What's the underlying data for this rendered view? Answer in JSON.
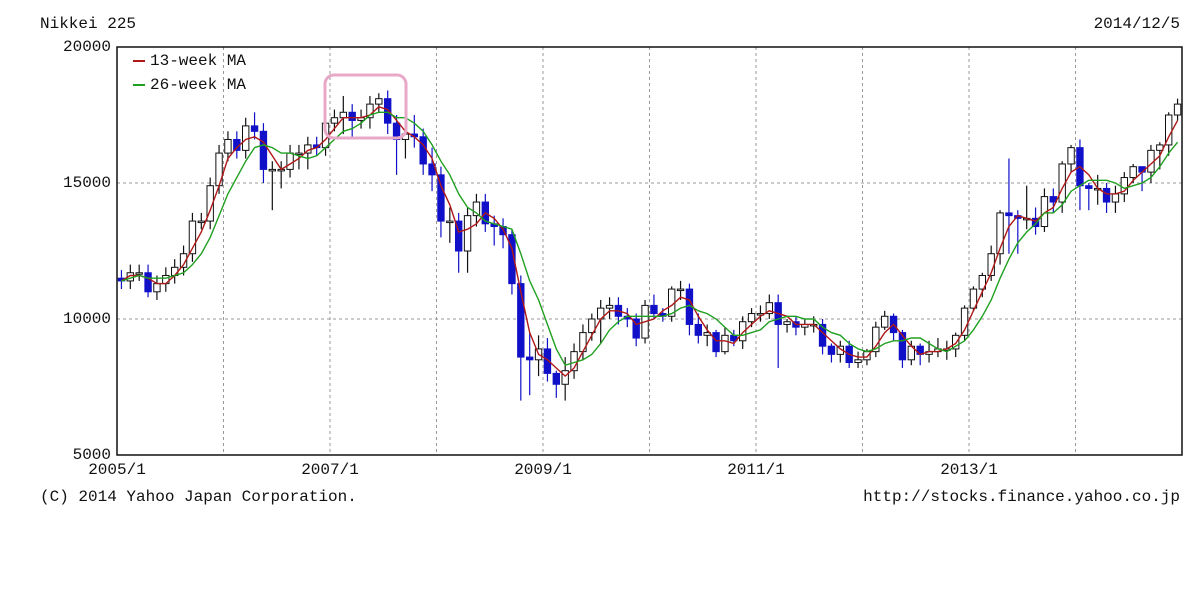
{
  "chart_data": {
    "type": "candlestick",
    "title": "Nikkei 225",
    "date": "2014/12/5",
    "categories": [
      "2005/1",
      null,
      null,
      null,
      null,
      null,
      null,
      null,
      null,
      null,
      null,
      null,
      null,
      null,
      null,
      null,
      null,
      null,
      null,
      null,
      null,
      null,
      null,
      null,
      "2007/1",
      null,
      null,
      null,
      null,
      null,
      null,
      null,
      null,
      null,
      null,
      null,
      null,
      null,
      null,
      null,
      null,
      null,
      null,
      null,
      null,
      null,
      null,
      null,
      "2009/1",
      null,
      null,
      null,
      null,
      null,
      null,
      null,
      null,
      null,
      null,
      null,
      null,
      null,
      null,
      null,
      null,
      null,
      null,
      null,
      null,
      null,
      null,
      null,
      "2011/1",
      null,
      null,
      null,
      null,
      null,
      null,
      null,
      null,
      null,
      null,
      null,
      null,
      null,
      null,
      null,
      null,
      null,
      null,
      null,
      null,
      null,
      null,
      null,
      "2013/1",
      null,
      null,
      null,
      null,
      null,
      null,
      null,
      null,
      null,
      null,
      null,
      null,
      null,
      null,
      null,
      null,
      null,
      null,
      null,
      null,
      null,
      null,
      null
    ],
    "open": [
      11500,
      11400,
      11700,
      11700,
      11000,
      11300,
      11600,
      11900,
      12400,
      13600,
      13600,
      14900,
      16100,
      16600,
      16200,
      17100,
      16900,
      15500,
      15500,
      15500,
      16100,
      16100,
      16400,
      16300,
      17200,
      17400,
      17600,
      17300,
      17400,
      17900,
      18100,
      17200,
      16600,
      16800,
      16700,
      15700,
      15300,
      13600,
      13600,
      12500,
      13800,
      14300,
      13500,
      13400,
      13100,
      11300,
      8600,
      8500,
      8900,
      8000,
      7600,
      8100,
      8800,
      9500,
      10000,
      10400,
      10500,
      10100,
      10000,
      9300,
      10500,
      10200,
      10100,
      11100,
      11100,
      9800,
      9400,
      9500,
      8800,
      9400,
      9200,
      9900,
      10200,
      10200,
      10600,
      9800,
      9900,
      9700,
      9800,
      9800,
      9000,
      8700,
      9000,
      8400,
      8500,
      8800,
      9700,
      10100,
      9500,
      8500,
      9000,
      8700,
      8800,
      8900,
      8900,
      9400,
      10400,
      11100,
      11600,
      12400,
      13900,
      13800,
      13700,
      13700,
      13400,
      14500,
      14300,
      15700,
      16300,
      14900,
      14800,
      14800,
      14300,
      14600,
      15200,
      15600,
      15400,
      16200,
      16400,
      17500
    ],
    "high": [
      11800,
      12000,
      12000,
      12000,
      11600,
      11900,
      12200,
      12700,
      13900,
      13900,
      15200,
      16400,
      16900,
      16900,
      17400,
      17600,
      17200,
      15800,
      15800,
      16400,
      16400,
      16700,
      16700,
      17500,
      17700,
      18200,
      17900,
      17700,
      18200,
      18300,
      18400,
      17500,
      17100,
      17500,
      17000,
      16300,
      15600,
      14100,
      13900,
      14100,
      14600,
      14600,
      13800,
      13700,
      13300,
      11600,
      9500,
      9400,
      9300,
      8100,
      8600,
      9100,
      9800,
      10200,
      10700,
      10800,
      10800,
      10400,
      10200,
      10700,
      10900,
      10400,
      11200,
      11400,
      11300,
      10200,
      9800,
      9600,
      9700,
      9600,
      10100,
      10400,
      10500,
      10900,
      10900,
      10000,
      10100,
      10000,
      10100,
      10000,
      9100,
      9200,
      9200,
      8800,
      8900,
      9900,
      10300,
      10200,
      9600,
      9200,
      9100,
      9200,
      9300,
      9200,
      9500,
      10500,
      11200,
      11700,
      12700,
      14000,
      15900,
      14000,
      14900,
      14100,
      14800,
      14800,
      15800,
      16400,
      16600,
      15000,
      15300,
      15000,
      14900,
      15400,
      15700,
      15600,
      16400,
      16500,
      17600,
      18100
    ],
    "low": [
      11100,
      11100,
      11400,
      10800,
      10700,
      11000,
      11300,
      11600,
      12100,
      13300,
      13300,
      14600,
      15800,
      15900,
      15900,
      16600,
      15000,
      14000,
      14800,
      15200,
      15500,
      15500,
      16000,
      16000,
      16900,
      16800,
      16600,
      17000,
      17000,
      17600,
      16800,
      15300,
      15900,
      16300,
      15300,
      14700,
      13000,
      12800,
      11700,
      11700,
      13400,
      13200,
      12700,
      12600,
      10900,
      7000,
      7200,
      7900,
      7700,
      7100,
      7000,
      7800,
      8500,
      9200,
      9100,
      10000,
      9800,
      9700,
      9000,
      9100,
      10000,
      9900,
      9900,
      10700,
      9400,
      9100,
      9000,
      8600,
      8700,
      9000,
      8900,
      9700,
      9900,
      10000,
      8200,
      9500,
      9400,
      9400,
      9500,
      8700,
      8400,
      8400,
      8200,
      8200,
      8300,
      8600,
      9600,
      9200,
      8200,
      8300,
      8300,
      8400,
      8600,
      8500,
      8600,
      9200,
      10300,
      10800,
      11400,
      12000,
      12400,
      12400,
      13300,
      13100,
      13200,
      13900,
      13900,
      15400,
      14000,
      14000,
      14200,
      13900,
      13900,
      14300,
      15000,
      14700,
      15000,
      15500,
      16000,
      17300
    ],
    "close": [
      11400,
      11700,
      11700,
      11000,
      11300,
      11600,
      11900,
      12400,
      13600,
      13600,
      14900,
      16100,
      16600,
      16200,
      17100,
      16900,
      15500,
      15500,
      15500,
      16100,
      16100,
      16400,
      16300,
      17200,
      17400,
      17600,
      17300,
      17400,
      17900,
      18100,
      17200,
      16600,
      16800,
      16700,
      15700,
      15300,
      13600,
      13600,
      12500,
      13800,
      14300,
      13500,
      13400,
      13100,
      11300,
      8600,
      8500,
      8900,
      8000,
      7600,
      8100,
      8800,
      9500,
      10000,
      10400,
      10500,
      10100,
      10000,
      9300,
      10500,
      10200,
      10100,
      11100,
      11100,
      9800,
      9400,
      9500,
      8800,
      9400,
      9200,
      9900,
      10200,
      10200,
      10600,
      9800,
      9900,
      9700,
      9800,
      9800,
      9000,
      8700,
      9000,
      8400,
      8500,
      8800,
      9700,
      10100,
      9500,
      8500,
      9000,
      8700,
      8800,
      8900,
      8900,
      9400,
      10400,
      11100,
      11600,
      12400,
      13900,
      13800,
      13700,
      13700,
      13400,
      14500,
      14300,
      15700,
      16300,
      14900,
      14800,
      14800,
      14300,
      14600,
      15200,
      15600,
      15400,
      16200,
      16400,
      17500,
      17900
    ],
    "up_color": "#ffffff",
    "down_color": "#1010c8",
    "series": [
      {
        "name": "13-week MA",
        "color": "#b01818",
        "values": [
          11400,
          11600,
          11600,
          11500,
          11300,
          11300,
          11600,
          12000,
          12600,
          13200,
          14000,
          14900,
          15900,
          16300,
          16600,
          16700,
          16500,
          16000,
          15500,
          15700,
          15900,
          16200,
          16300,
          16600,
          17000,
          17400,
          17400,
          17400,
          17500,
          17800,
          17700,
          17300,
          16900,
          16700,
          16400,
          15900,
          14900,
          14200,
          13200,
          13300,
          13500,
          13900,
          13700,
          13300,
          12600,
          11000,
          9500,
          8700,
          8500,
          8200,
          7900,
          8200,
          8800,
          9400,
          10000,
          10300,
          10300,
          10200,
          9800,
          9900,
          10000,
          10300,
          10500,
          10800,
          10700,
          10100,
          9600,
          9200,
          9200,
          9100,
          9500,
          9800,
          10100,
          10300,
          10200,
          10100,
          9800,
          9800,
          9800,
          9500,
          9200,
          8900,
          8700,
          8600,
          8600,
          9000,
          9500,
          9800,
          9400,
          9000,
          8700,
          8800,
          8800,
          8900,
          9100,
          9600,
          10300,
          11000,
          11700,
          12600,
          13400,
          13800,
          13700,
          13600,
          13900,
          14100,
          14800,
          15400,
          15600,
          15300,
          14800,
          14600,
          14600,
          14700,
          15100,
          15400,
          15700,
          16000,
          16700,
          17300
        ]
      },
      {
        "name": "26-week MA",
        "color": "#20a020",
        "values": [
          11400,
          11500,
          11600,
          11500,
          11500,
          11500,
          11600,
          11700,
          12000,
          12400,
          13000,
          13800,
          14600,
          15200,
          15800,
          16300,
          16400,
          16300,
          16100,
          16100,
          16000,
          15900,
          16000,
          16300,
          16600,
          16900,
          17000,
          17200,
          17500,
          17600,
          17600,
          17400,
          17400,
          17200,
          16900,
          16400,
          15800,
          15300,
          14600,
          14100,
          13900,
          13600,
          13500,
          13400,
          13300,
          12400,
          11400,
          10700,
          9800,
          8900,
          8300,
          8400,
          8500,
          8700,
          9100,
          9600,
          9900,
          10100,
          10100,
          10100,
          10100,
          10100,
          10200,
          10400,
          10500,
          10300,
          10200,
          10000,
          9700,
          9400,
          9400,
          9500,
          9600,
          9900,
          10000,
          10100,
          10100,
          10000,
          10000,
          9700,
          9500,
          9400,
          9100,
          8900,
          8800,
          8900,
          9100,
          9200,
          9200,
          9300,
          9300,
          9100,
          8900,
          8800,
          9000,
          9200,
          9600,
          10100,
          10700,
          11500,
          12200,
          12800,
          13200,
          13500,
          13900,
          13900,
          14200,
          14700,
          14900,
          15100,
          15100,
          15100,
          15000,
          14800,
          14900,
          15000,
          15200,
          15600,
          16100,
          16500
        ]
      }
    ],
    "ylim": [
      5000,
      20000
    ],
    "yticks": [
      5000,
      10000,
      15000,
      20000
    ],
    "grid": true
  },
  "footer": {
    "left": "(C) 2014 Yahoo Japan Corporation.",
    "right": "http://stocks.finance.yahoo.co.jp"
  }
}
